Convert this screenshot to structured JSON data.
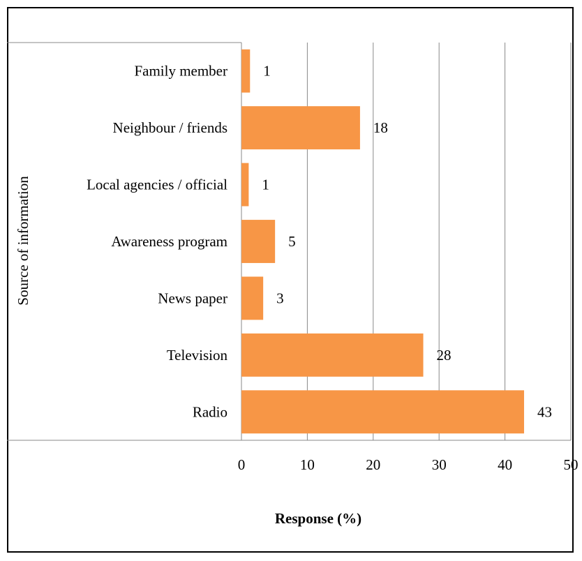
{
  "chart_data": {
    "type": "bar",
    "orientation": "horizontal",
    "categories": [
      "Family member",
      "Neighbour / friends",
      "Local agencies / official",
      "Awareness program",
      "News paper",
      "Television",
      "Radio"
    ],
    "values": [
      1.3,
      18,
      1.1,
      5.1,
      3.3,
      27.6,
      42.9
    ],
    "data_labels": [
      "1",
      "18",
      "1",
      "5",
      "3",
      "28",
      "43"
    ],
    "xlabel": "Response (%)",
    "ylabel": "Source of information",
    "xlim": [
      0,
      50
    ],
    "xticks": [
      "0",
      "10",
      "20",
      "30",
      "40",
      "50"
    ],
    "bar_color": "#F79646",
    "grid": "vertical",
    "legend": "none"
  }
}
